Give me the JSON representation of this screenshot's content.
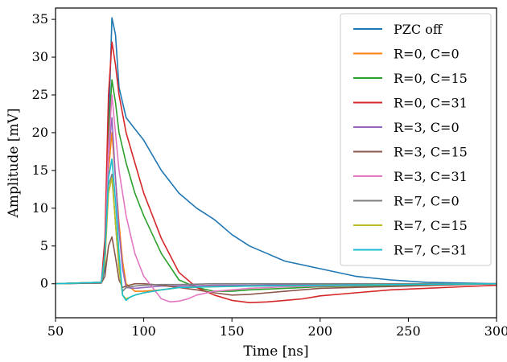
{
  "chart_data": {
    "type": "line",
    "title": "",
    "xlabel": "Time [ns]",
    "ylabel": "Amplitude [mV]",
    "xlim": [
      50,
      300
    ],
    "ylim": [
      -4.5,
      36.5
    ],
    "xticks": [
      50,
      100,
      150,
      200,
      250,
      300
    ],
    "yticks": [
      0,
      5,
      10,
      15,
      20,
      25,
      30,
      35
    ],
    "grid": false,
    "legend_position": "top-right",
    "series": [
      {
        "name": "PZC off",
        "color": "#1f77b4",
        "x": [
          50,
          76,
          78,
          80,
          82,
          84,
          86,
          90,
          95,
          100,
          110,
          120,
          130,
          140,
          150,
          160,
          170,
          180,
          200,
          220,
          240,
          260,
          280,
          300
        ],
        "y": [
          0,
          0.1,
          2,
          20,
          35.2,
          33,
          26,
          22,
          20.5,
          19,
          15,
          12,
          10,
          8.5,
          6.5,
          5,
          4,
          3,
          2,
          1,
          0.5,
          0.2,
          0.1,
          0
        ]
      },
      {
        "name": "R=0, C=0",
        "color": "#ff7f0e",
        "x": [
          50,
          76,
          78,
          80,
          82,
          84,
          86,
          88,
          90,
          95,
          100,
          110,
          120,
          150,
          200,
          250,
          300
        ],
        "y": [
          0,
          0.2,
          3,
          15,
          20,
          14,
          8,
          3,
          0,
          -1,
          -1,
          -0.8,
          -0.5,
          -0.3,
          -0.2,
          -0.1,
          0
        ]
      },
      {
        "name": "R=0, C=15",
        "color": "#2ca02c",
        "x": [
          50,
          76,
          78,
          80,
          82,
          84,
          86,
          90,
          95,
          100,
          110,
          120,
          130,
          140,
          150,
          160,
          180,
          200,
          250,
          300
        ],
        "y": [
          0,
          0.2,
          5,
          20,
          27,
          24,
          20,
          16,
          12,
          9,
          4,
          0.5,
          -0.5,
          -1,
          -1,
          -0.8,
          -0.6,
          -0.4,
          -0.2,
          0
        ]
      },
      {
        "name": "R=0, C=31",
        "color": "#d62728",
        "x": [
          50,
          76,
          78,
          80,
          82,
          84,
          86,
          90,
          95,
          100,
          110,
          120,
          130,
          140,
          150,
          160,
          170,
          180,
          190,
          200,
          220,
          240,
          260,
          280,
          300
        ],
        "y": [
          0,
          0.2,
          6,
          25,
          32,
          29,
          25,
          20,
          16,
          12,
          6,
          1.5,
          -0.5,
          -1.5,
          -2.2,
          -2.5,
          -2.4,
          -2.2,
          -2,
          -1.6,
          -1.2,
          -0.8,
          -0.6,
          -0.4,
          -0.2
        ]
      },
      {
        "name": "R=3, C=0",
        "color": "#9467bd",
        "x": [
          50,
          76,
          78,
          80,
          82,
          84,
          86,
          88,
          90,
          95,
          100,
          110,
          120,
          140,
          160,
          200,
          250,
          300
        ],
        "y": [
          0,
          0.2,
          3,
          17,
          22,
          14,
          7,
          2,
          -0.5,
          -0.6,
          -0.5,
          -0.3,
          -0.3,
          -0.2,
          -0.2,
          -0.1,
          -0.1,
          0
        ]
      },
      {
        "name": "R=3, C=15",
        "color": "#8c564b",
        "x": [
          50,
          76,
          78,
          80,
          82,
          84,
          86,
          88,
          90,
          95,
          100,
          110,
          120,
          130,
          140,
          150,
          160,
          170,
          180,
          200,
          250,
          300
        ],
        "y": [
          0,
          0.1,
          1,
          5,
          6.2,
          3.5,
          0.5,
          -0.5,
          -0.3,
          0,
          0,
          -0.2,
          -0.5,
          -0.8,
          -1.2,
          -1.5,
          -1.4,
          -1.2,
          -1,
          -0.6,
          -0.3,
          0
        ]
      },
      {
        "name": "R=3, C=31",
        "color": "#e377c2",
        "x": [
          50,
          76,
          78,
          80,
          82,
          84,
          86,
          90,
          95,
          100,
          105,
          110,
          115,
          120,
          125,
          130,
          140,
          150,
          160,
          180,
          200,
          250,
          300
        ],
        "y": [
          0,
          0.2,
          4,
          18,
          25,
          20,
          15,
          9,
          4,
          1,
          -0.5,
          -2,
          -2.4,
          -2.3,
          -2,
          -1.5,
          -1,
          -0.8,
          -0.6,
          -0.4,
          -0.3,
          -0.1,
          0
        ]
      },
      {
        "name": "R=7, C=0",
        "color": "#7f7f7f",
        "x": [
          50,
          76,
          78,
          80,
          82,
          84,
          86,
          88,
          90,
          95,
          100,
          110,
          120,
          140,
          160,
          200,
          250,
          300
        ],
        "y": [
          0,
          0.2,
          3,
          13,
          14.5,
          8,
          2,
          -1,
          -0.5,
          -0.3,
          -0.2,
          -0.1,
          -0.1,
          0,
          0,
          0,
          0,
          0
        ]
      },
      {
        "name": "R=7, C=15",
        "color": "#bcbd22",
        "x": [
          50,
          76,
          78,
          80,
          82,
          84,
          86,
          88,
          90,
          95,
          100,
          110,
          120,
          140,
          160,
          200,
          250,
          300
        ],
        "y": [
          0,
          0.2,
          3,
          12,
          14,
          8,
          2,
          -1.5,
          -2,
          -1.5,
          -1.2,
          -0.8,
          -0.5,
          -0.4,
          -0.3,
          -0.2,
          -0.1,
          0
        ]
      },
      {
        "name": "R=7, C=31",
        "color": "#17becf",
        "x": [
          50,
          76,
          78,
          80,
          82,
          84,
          86,
          88,
          90,
          92,
          95,
          100,
          110,
          120,
          140,
          160,
          200,
          250,
          300
        ],
        "y": [
          0,
          0.2,
          4,
          14,
          16.5,
          11,
          4,
          -1.5,
          -2.2,
          -1.8,
          -1.5,
          -1.2,
          -0.8,
          -0.5,
          -0.4,
          -0.3,
          -0.2,
          -0.1,
          0
        ]
      }
    ]
  }
}
